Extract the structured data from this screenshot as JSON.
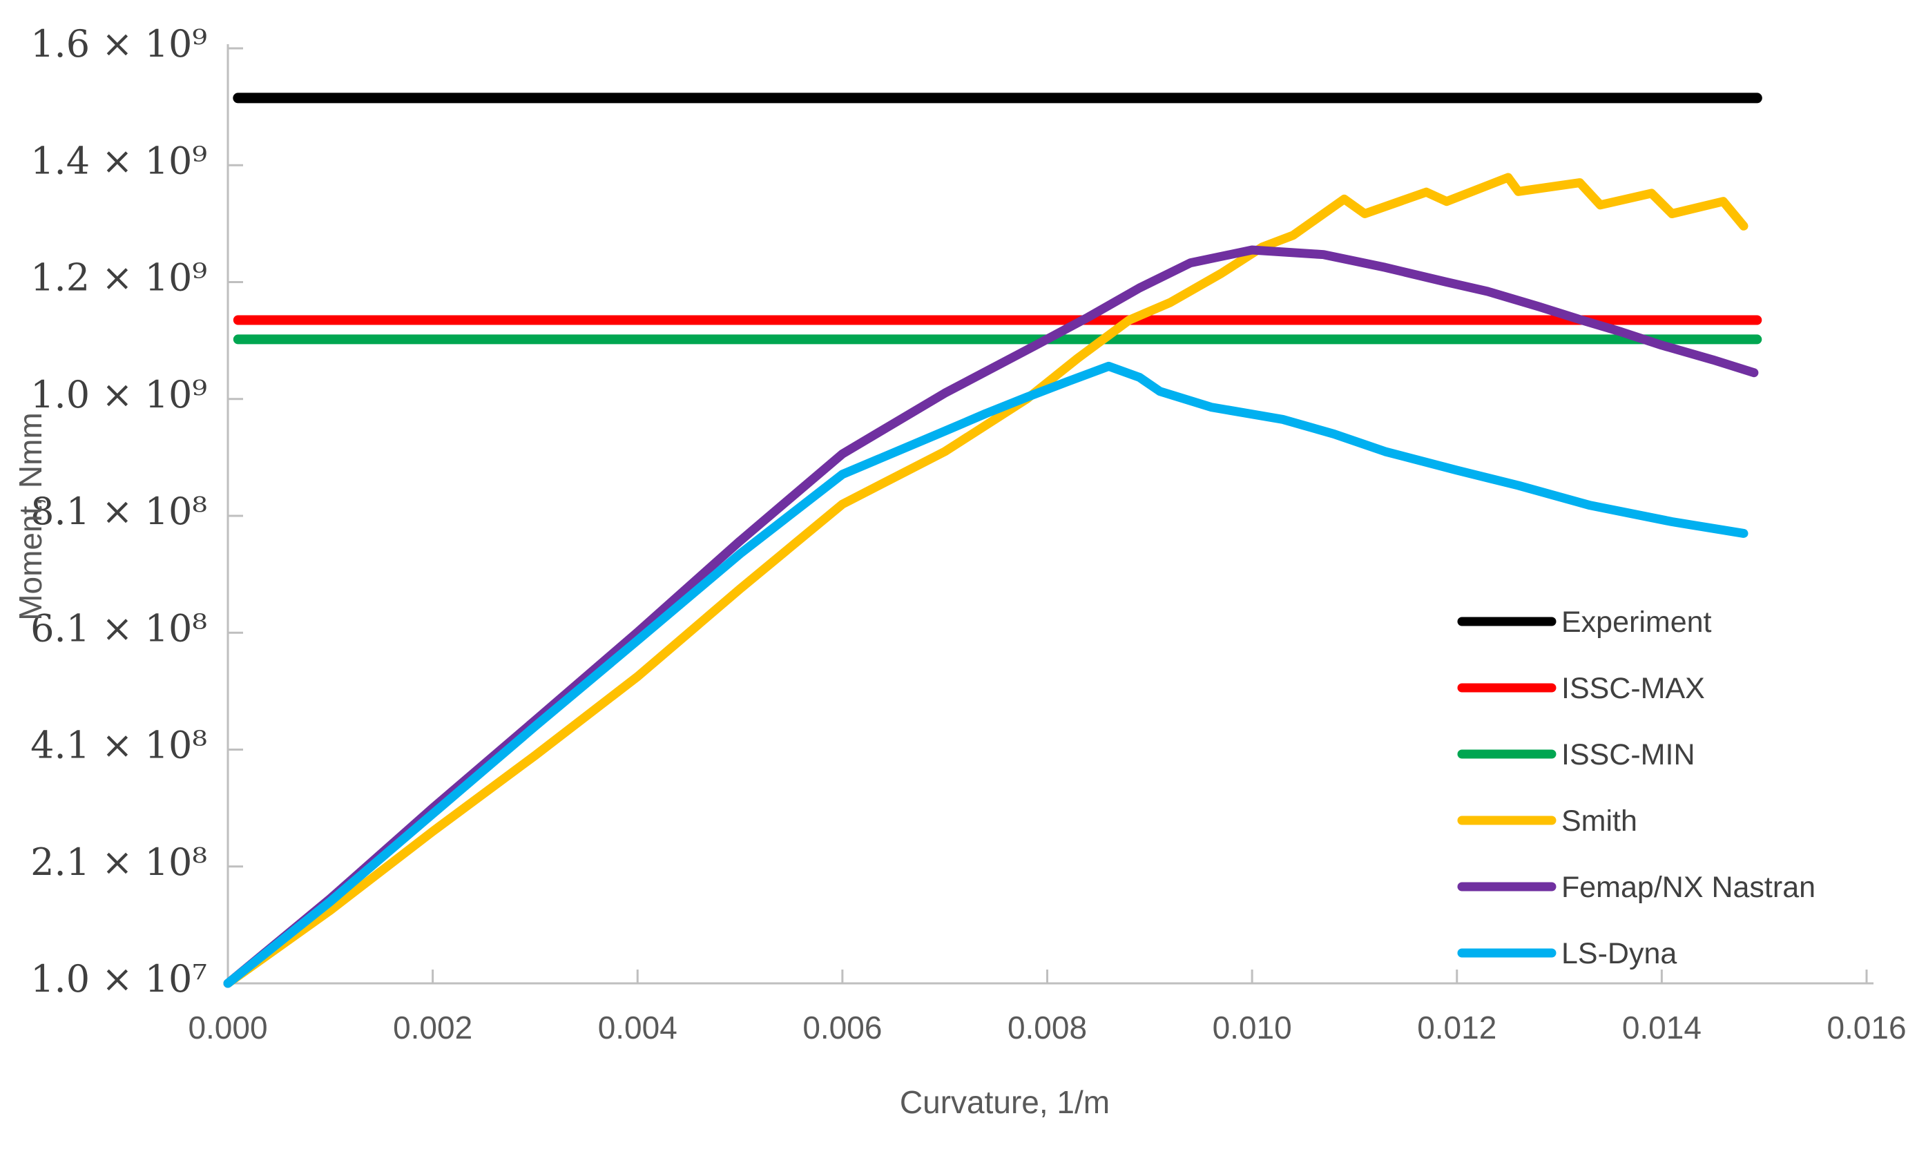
{
  "chart_data": {
    "type": "line",
    "title": "",
    "xlabel": "Curvature, 1/m",
    "ylabel": "Moment, Nmm",
    "xlim": [
      0,
      0.016
    ],
    "ylim": [
      10000000.0,
      1610000000.0
    ],
    "grid": false,
    "legend_position": "inside-lower-right",
    "axis_color": "#BFBFBF",
    "x_ticks": [
      {
        "value": 0.0,
        "label": "0.000"
      },
      {
        "value": 0.002,
        "label": "0.002"
      },
      {
        "value": 0.004,
        "label": "0.004"
      },
      {
        "value": 0.006,
        "label": "0.006"
      },
      {
        "value": 0.008,
        "label": "0.008"
      },
      {
        "value": 0.01,
        "label": "0.010"
      },
      {
        "value": 0.012,
        "label": "0.012"
      },
      {
        "value": 0.014,
        "label": "0.014"
      },
      {
        "value": 0.016,
        "label": "0.016"
      }
    ],
    "y_ticks": [
      {
        "value": 10000000.0,
        "label": "1.0 × 10⁷"
      },
      {
        "value": 210000000.0,
        "label": "2.1 × 10⁸"
      },
      {
        "value": 410000000.0,
        "label": "4.1 × 10⁸"
      },
      {
        "value": 610000000.0,
        "label": "6.1 × 10⁸"
      },
      {
        "value": 810000000.0,
        "label": "8.1 × 10⁸"
      },
      {
        "value": 1010000000.0,
        "label": "1.0 × 10⁹"
      },
      {
        "value": 1210000000.0,
        "label": "1.2 × 10⁹"
      },
      {
        "value": 1410000000.0,
        "label": "1.4 × 10⁹"
      },
      {
        "value": 1610000000.0,
        "label": "1.6 × 10⁹"
      }
    ],
    "series": [
      {
        "name": "Experiment",
        "color": "#000000",
        "width": 15,
        "points": [
          [
            0.0001,
            1525000000.0
          ],
          [
            0.01493,
            1525000000.0
          ]
        ]
      },
      {
        "name": "ISSC-MAX",
        "color": "#FF0000",
        "width": 14,
        "points": [
          [
            0.0001,
            1145000000.0
          ],
          [
            0.01493,
            1145000000.0
          ]
        ]
      },
      {
        "name": "ISSC-MIN",
        "color": "#00A651",
        "width": 14,
        "points": [
          [
            0.0001,
            1112000000.0
          ],
          [
            0.01493,
            1112000000.0
          ]
        ]
      },
      {
        "name": "Smith",
        "color": "#FFC000",
        "width": 13,
        "points": [
          [
            0.0,
            10000000.0
          ],
          [
            0.001,
            135000000.0
          ],
          [
            0.002,
            270000000.0
          ],
          [
            0.003,
            400000000.0
          ],
          [
            0.004,
            535000000.0
          ],
          [
            0.005,
            685000000.0
          ],
          [
            0.006,
            830000000.0
          ],
          [
            0.007,
            920000000.0
          ],
          [
            0.0078,
            1010000000.0
          ],
          [
            0.0083,
            1080000000.0
          ],
          [
            0.0088,
            1145000000.0
          ],
          [
            0.0092,
            1175000000.0
          ],
          [
            0.0097,
            1225000000.0
          ],
          [
            0.0101,
            1270000000.0
          ],
          [
            0.0104,
            1290000000.0
          ],
          [
            0.0109,
            1352000000.0
          ],
          [
            0.0111,
            1327000000.0
          ],
          [
            0.0117,
            1364000000.0
          ],
          [
            0.0119,
            1348000000.0
          ],
          [
            0.0125,
            1389000000.0
          ],
          [
            0.0126,
            1365000000.0
          ],
          [
            0.0132,
            1380000000.0
          ],
          [
            0.0134,
            1342000000.0
          ],
          [
            0.0139,
            1362000000.0
          ],
          [
            0.0141,
            1327000000.0
          ],
          [
            0.0146,
            1348000000.0
          ],
          [
            0.0148,
            1306000000.0
          ]
        ]
      },
      {
        "name": "Femap/NX Nastran",
        "color": "#7030A0",
        "width": 13,
        "points": [
          [
            0.0,
            10000000.0
          ],
          [
            0.001,
            155000000.0
          ],
          [
            0.002,
            310000000.0
          ],
          [
            0.003,
            460000000.0
          ],
          [
            0.004,
            611000000.0
          ],
          [
            0.005,
            767000000.0
          ],
          [
            0.006,
            916000000.0
          ],
          [
            0.007,
            1020000000.0
          ],
          [
            0.0079,
            1103000000.0
          ],
          [
            0.0084,
            1150000000.0
          ],
          [
            0.0089,
            1200000000.0
          ],
          [
            0.0094,
            1243000000.0
          ],
          [
            0.01,
            1265000000.0
          ],
          [
            0.0107,
            1257000000.0
          ],
          [
            0.0113,
            1235000000.0
          ],
          [
            0.0119,
            1210000000.0
          ],
          [
            0.0123,
            1194000000.0
          ],
          [
            0.0128,
            1168000000.0
          ],
          [
            0.0132,
            1146000000.0
          ],
          [
            0.0136,
            1125000000.0
          ],
          [
            0.014,
            1102000000.0
          ],
          [
            0.0145,
            1077000000.0
          ],
          [
            0.0149,
            1055000000.0
          ]
        ]
      },
      {
        "name": "LS-Dyna",
        "color": "#00B0F0",
        "width": 13,
        "points": [
          [
            0.0,
            10000000.0
          ],
          [
            0.001,
            150000000.0
          ],
          [
            0.002,
            300000000.0
          ],
          [
            0.003,
            450000000.0
          ],
          [
            0.004,
            597000000.0
          ],
          [
            0.005,
            745000000.0
          ],
          [
            0.006,
            881000000.0
          ],
          [
            0.007,
            955000000.0
          ],
          [
            0.0074,
            985000000.0
          ],
          [
            0.0078,
            1013000000.0
          ],
          [
            0.0082,
            1040000000.0
          ],
          [
            0.0086,
            1066000000.0
          ],
          [
            0.0089,
            1047000000.0
          ],
          [
            0.0091,
            1023000000.0
          ],
          [
            0.0096,
            996000000.0
          ],
          [
            0.0103,
            975000000.0
          ],
          [
            0.0108,
            950000000.0
          ],
          [
            0.0113,
            920000000.0
          ],
          [
            0.012,
            888000000.0
          ],
          [
            0.0126,
            862000000.0
          ],
          [
            0.0133,
            828000000.0
          ],
          [
            0.0141,
            800000000.0
          ],
          [
            0.0148,
            780000000.0
          ]
        ]
      }
    ]
  }
}
